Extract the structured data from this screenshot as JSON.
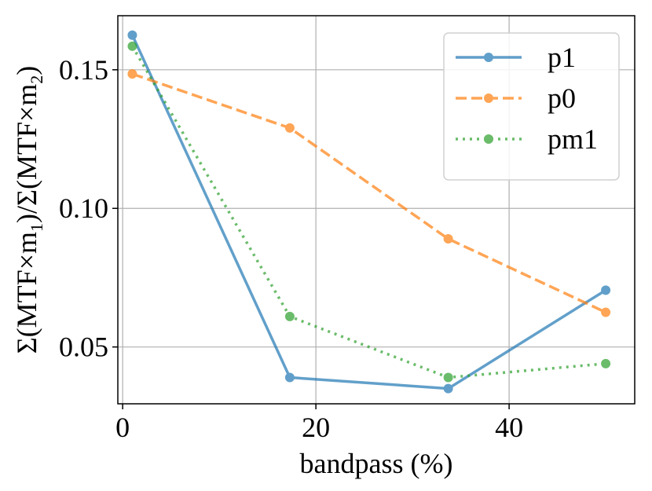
{
  "chart_data": {
    "type": "line",
    "title": "",
    "xlabel": "bandpass (%)",
    "ylabel": {
      "prefix": "Σ(MTF×m",
      "sub1": "1",
      "middle": ")/Σ(MTF×m",
      "sub2": "2",
      "suffix": ")"
    },
    "x": [
      1,
      17.3,
      33.7,
      50
    ],
    "xlim": [
      -0.5,
      53
    ],
    "ylim": [
      0.0295,
      0.1695
    ],
    "xticks": [
      0,
      20,
      40
    ],
    "xtick_labels": [
      "0",
      "20",
      "40"
    ],
    "yticks": [
      0.05,
      0.1,
      0.15
    ],
    "ytick_labels": [
      "0.05",
      "0.10",
      "0.15"
    ],
    "grid": true,
    "legend_position": "top-right",
    "series": [
      {
        "name": "p1",
        "values": [
          0.1625,
          0.039,
          0.035,
          0.0705
        ],
        "color": "#1f77b4",
        "dash": "solid"
      },
      {
        "name": "p0",
        "values": [
          0.1485,
          0.129,
          0.089,
          0.0625
        ],
        "color": "#ff7f0e",
        "dash": "dashed"
      },
      {
        "name": "pm1",
        "values": [
          0.1585,
          0.061,
          0.039,
          0.044
        ],
        "color": "#2ca02c",
        "dash": "dotted"
      }
    ]
  }
}
